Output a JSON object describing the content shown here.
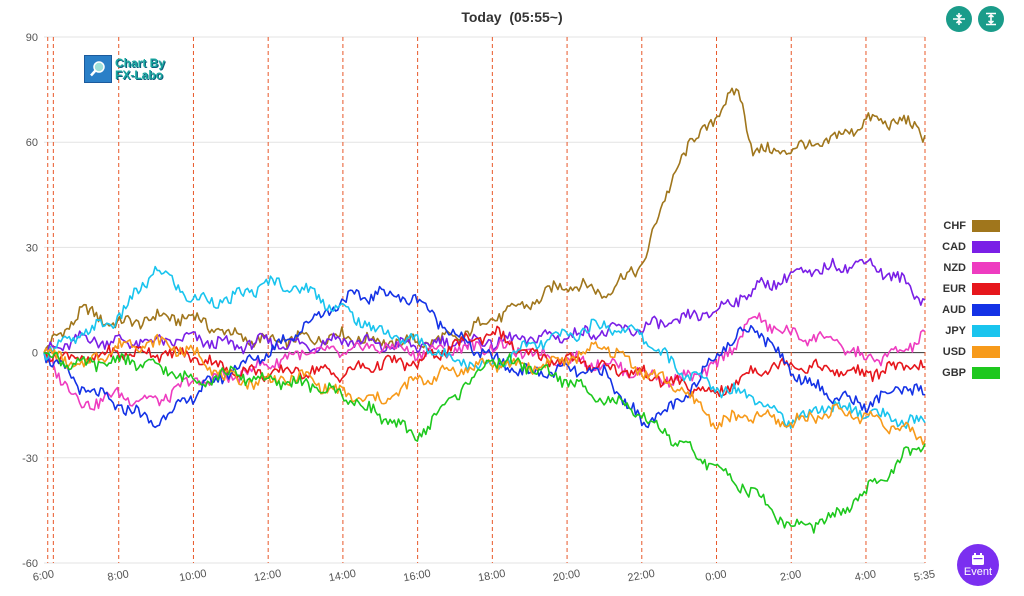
{
  "header": {
    "title": "Today",
    "time": "(05:55~)"
  },
  "buttons": {
    "event_label": "Event"
  },
  "logo": {
    "line1": "Chart By",
    "line2": "FX-Labo"
  },
  "colors": {
    "CHF": "#a0761c",
    "CAD": "#7a1fe6",
    "NZD": "#ee3cc0",
    "EUR": "#e6161c",
    "AUD": "#1432e6",
    "JPY": "#19c4ee",
    "USD": "#f79a1a",
    "GBP": "#1ec81e",
    "vline": "#e8582a",
    "accent": "#1a9c8a",
    "event": "#7b2ff0"
  },
  "chart_data": {
    "type": "line",
    "ylim": [
      -60,
      90
    ],
    "yticks": [
      "90",
      "60",
      "30",
      "0",
      "-30",
      "-60"
    ],
    "xticks": [
      "6:00",
      "8:00",
      "10:00",
      "12:00",
      "14:00",
      "16:00",
      "18:00",
      "20:00",
      "22:00",
      "0:00",
      "2:00",
      "4:00",
      "5:35"
    ],
    "x_hours": [
      0,
      2,
      4,
      6,
      8,
      10,
      12,
      14,
      16,
      18,
      20,
      22,
      23.58
    ],
    "legend": [
      "CHF",
      "CAD",
      "NZD",
      "EUR",
      "AUD",
      "JPY",
      "USD",
      "GBP"
    ],
    "series": [
      {
        "name": "CHF",
        "x": [
          0,
          1,
          2,
          3,
          4,
          5,
          6,
          7,
          8,
          9,
          10,
          11,
          12,
          13,
          14,
          15,
          16,
          16.5,
          17,
          18,
          18.6,
          19,
          20,
          21,
          22,
          23,
          23.58
        ],
        "values": [
          0,
          12,
          8,
          10,
          10,
          5,
          3,
          4,
          5,
          3,
          3,
          4,
          10,
          14,
          20,
          17,
          25,
          40,
          55,
          68,
          75,
          57,
          58,
          60,
          66,
          66,
          62
        ]
      },
      {
        "name": "CAD",
        "x": [
          0,
          1,
          2,
          3,
          4,
          5,
          6,
          7,
          8,
          9,
          10,
          11,
          12,
          13,
          14,
          15,
          16,
          17,
          18,
          19,
          20,
          21,
          22,
          23,
          23.58
        ],
        "values": [
          0,
          4,
          3,
          3,
          4,
          2,
          3,
          2,
          4,
          2,
          2,
          3,
          3,
          4,
          5,
          6,
          7,
          9,
          12,
          18,
          22,
          24,
          26,
          20,
          15
        ]
      },
      {
        "name": "NZD",
        "x": [
          0,
          1,
          2,
          3,
          4,
          5,
          6,
          7,
          8,
          9,
          10,
          11,
          12,
          13,
          14,
          15,
          16,
          17,
          18,
          19,
          20,
          21,
          22,
          23,
          23.58
        ],
        "values": [
          0,
          -15,
          -12,
          -14,
          -8,
          -7,
          -3,
          0,
          0,
          2,
          0,
          1,
          2,
          0,
          -2,
          -3,
          -6,
          -8,
          -4,
          10,
          5,
          4,
          -2,
          0,
          6
        ]
      },
      {
        "name": "EUR",
        "x": [
          0,
          1,
          2,
          3,
          4,
          5,
          6,
          7,
          8,
          9,
          10,
          11,
          12,
          13,
          14,
          15,
          16,
          17,
          18,
          19,
          20,
          21,
          22,
          23,
          23.58
        ],
        "values": [
          0,
          -2,
          0,
          0,
          -1,
          -5,
          -6,
          -5,
          -6,
          -3,
          -3,
          2,
          6,
          -1,
          -2,
          -4,
          -6,
          -9,
          -12,
          -5,
          -3,
          -5,
          -6,
          -4,
          -4
        ]
      },
      {
        "name": "AUD",
        "x": [
          0,
          1,
          2,
          3,
          4,
          5,
          6,
          7,
          8,
          9,
          10,
          11,
          12,
          13,
          14,
          15,
          16,
          17,
          18,
          19,
          20,
          21,
          22,
          23,
          23.58
        ],
        "values": [
          0,
          -10,
          -15,
          -20,
          -12,
          -5,
          0,
          8,
          15,
          17,
          15,
          5,
          -2,
          -6,
          -5,
          -6,
          -20,
          -15,
          0,
          8,
          -5,
          -12,
          -15,
          -10,
          -12
        ]
      },
      {
        "name": "JPY",
        "x": [
          0,
          1,
          2,
          3,
          4,
          5,
          6,
          7,
          8,
          9,
          10,
          11,
          12,
          13,
          14,
          15,
          16,
          17,
          18,
          19,
          20,
          21,
          22,
          23,
          23.58
        ],
        "values": [
          0,
          5,
          10,
          24,
          15,
          15,
          20,
          18,
          12,
          6,
          3,
          -2,
          -4,
          2,
          5,
          8,
          5,
          -5,
          -10,
          -12,
          -20,
          -15,
          -17,
          -20,
          -20
        ]
      },
      {
        "name": "USD",
        "x": [
          0,
          1,
          2,
          3,
          4,
          5,
          6,
          7,
          8,
          9,
          10,
          11,
          12,
          13,
          14,
          15,
          16,
          17,
          18,
          19,
          20,
          21,
          22,
          23,
          23.58
        ],
        "values": [
          0,
          -4,
          2,
          3,
          0,
          -8,
          -8,
          -7,
          -12,
          -14,
          -8,
          -5,
          -3,
          -4,
          -2,
          2,
          -5,
          -10,
          -20,
          -18,
          -20,
          -17,
          -18,
          -22,
          -25
        ]
      },
      {
        "name": "GBP",
        "x": [
          0,
          1,
          2,
          3,
          4,
          5,
          6,
          7,
          8,
          9,
          10,
          11,
          12,
          13,
          14,
          15,
          16,
          17,
          18,
          19,
          20,
          21,
          22,
          23,
          23.58
        ],
        "values": [
          0,
          -4,
          -2,
          -4,
          -8,
          -6,
          -8,
          -9,
          -12,
          -18,
          -24,
          -12,
          -2,
          -4,
          -8,
          -13,
          -18,
          -26,
          -33,
          -40,
          -50,
          -48,
          -40,
          -30,
          -26
        ]
      }
    ]
  }
}
